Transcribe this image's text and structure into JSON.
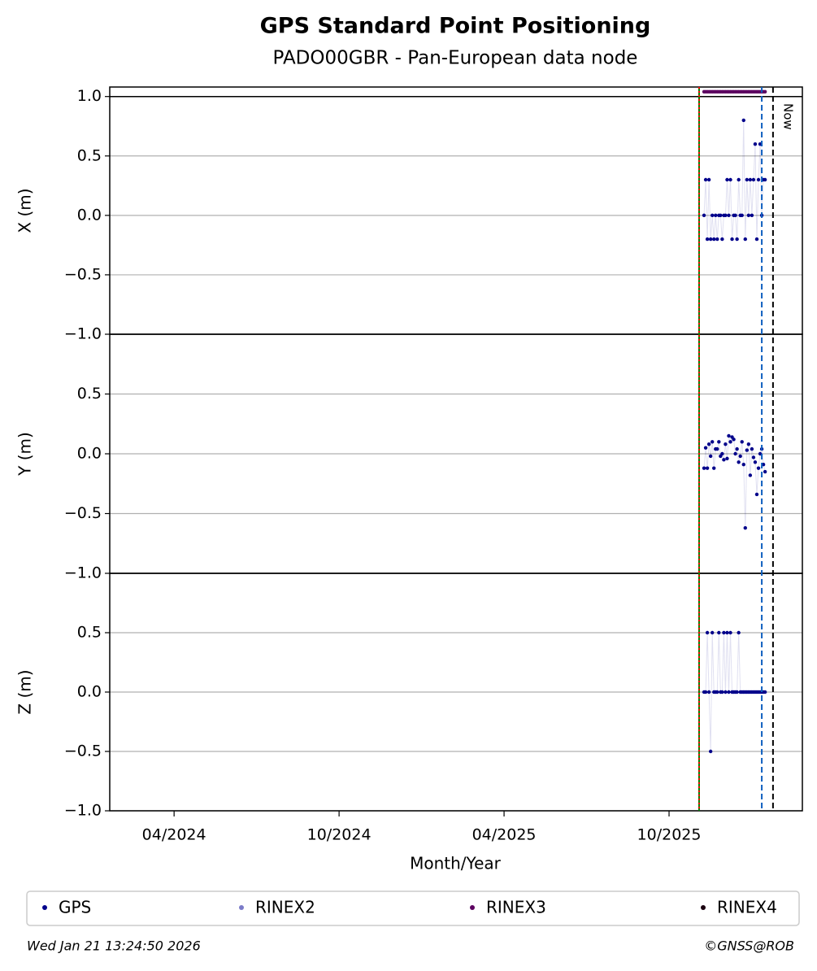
{
  "chart_data": {
    "type": "scatter",
    "title": "GPS Standard Point Positioning",
    "subtitle": "PADO00GBR - Pan-European data node",
    "xlabel": "Month/Year",
    "xlim": [
      2024.055,
      2026.154
    ],
    "xticks": [
      {
        "value": 2024.25,
        "label": "04/2024"
      },
      {
        "value": 2024.75,
        "label": "10/2024"
      },
      {
        "value": 2025.25,
        "label": "04/2025"
      },
      {
        "value": 2025.75,
        "label": "10/2025"
      }
    ],
    "grid": true,
    "x": [
      2025.856,
      2025.861,
      2025.866,
      2025.871,
      2025.876,
      2025.881,
      2025.886,
      2025.891,
      2025.896,
      2025.901,
      2025.906,
      2025.911,
      2025.916,
      2025.921,
      2025.926,
      2025.931,
      2025.936,
      2025.941,
      2025.946,
      2025.951,
      2025.956,
      2025.961,
      2025.966,
      2025.971,
      2025.976,
      2025.981,
      2025.986,
      2025.991,
      2025.996,
      2026.001,
      2026.006,
      2026.011,
      2026.016,
      2026.021,
      2026.026,
      2026.031,
      2026.036,
      2026.041
    ],
    "panels": [
      {
        "ylabel": "X (m)",
        "ylim": [
          -1,
          1.08
        ],
        "hline": 1,
        "yticks": [
          {
            "value": -1,
            "label": "−1.0"
          },
          {
            "value": -0.5,
            "label": "−0.5"
          },
          {
            "value": 0,
            "label": "0.0"
          },
          {
            "value": 0.5,
            "label": "0.5"
          },
          {
            "value": 1,
            "label": "1.0"
          }
        ]
      },
      {
        "ylabel": "Y (m)",
        "ylim": [
          -1,
          1
        ],
        "yticks": [
          {
            "value": -1,
            "label": "−1.0"
          },
          {
            "value": -0.5,
            "label": "−0.5"
          },
          {
            "value": 0,
            "label": "0.0"
          },
          {
            "value": 0.5,
            "label": "0.5"
          }
        ]
      },
      {
        "ylabel": "Z (m)",
        "ylim": [
          -1,
          1
        ],
        "yticks": [
          {
            "value": -1,
            "label": "−1.0"
          },
          {
            "value": -0.5,
            "label": "−0.5"
          },
          {
            "value": 0,
            "label": "0.0"
          },
          {
            "value": 0.5,
            "label": "0.5"
          }
        ]
      }
    ],
    "series": [
      {
        "name": "GPS",
        "color": "#00008b",
        "values": [
          [
            0,
            0.3,
            -0.2,
            0.3,
            -0.2,
            0,
            -0.2,
            0,
            -0.2,
            0,
            0,
            -0.2,
            0,
            0,
            0.3,
            0,
            0.3,
            -0.2,
            0,
            0,
            -0.2,
            0.3,
            0,
            0,
            0.8,
            -0.2,
            0.3,
            0,
            0.3,
            0,
            0.3,
            0.6,
            -0.2,
            0.3,
            0.6,
            0,
            0.3,
            0.3
          ],
          [
            -0.12,
            0.05,
            -0.12,
            0.08,
            -0.02,
            0.1,
            -0.12,
            0.04,
            0.04,
            0.1,
            -0.02,
            0.0,
            -0.05,
            0.08,
            -0.04,
            0.15,
            0.1,
            0.14,
            0.12,
            0.0,
            0.04,
            -0.07,
            -0.02,
            0.1,
            -0.09,
            -0.62,
            0.03,
            0.08,
            -0.18,
            0.04,
            -0.03,
            -0.07,
            -0.34,
            -0.12,
            0.0,
            0.04,
            -0.09,
            -0.15
          ],
          [
            0,
            0,
            0.5,
            0,
            -0.5,
            0.5,
            0,
            0,
            0,
            0.5,
            0,
            0,
            0.5,
            0,
            0.5,
            0,
            0.5,
            0,
            0,
            0,
            0,
            0.5,
            0,
            0,
            0,
            0,
            0,
            0,
            0,
            0,
            0,
            0,
            0,
            0,
            0,
            0,
            0,
            0
          ]
        ]
      },
      {
        "name": "RINEX2",
        "color": "#7b7bc8",
        "values": []
      },
      {
        "name": "RINEX3",
        "color": "#5c0060",
        "values": [
          [
            1.04,
            1.04,
            1.04,
            1.04,
            1.04,
            1.04,
            1.04,
            1.04,
            1.04,
            1.04,
            1.04,
            1.04,
            1.04,
            1.04,
            1.04,
            1.04,
            1.04,
            1.04,
            1.04,
            1.04,
            1.04,
            1.04,
            1.04,
            1.04,
            1.04,
            1.04,
            1.04,
            1.04,
            1.04,
            1.04,
            1.04,
            1.04,
            1.04,
            1.04,
            1.04,
            1.04,
            1.04,
            1.04
          ]
        ]
      },
      {
        "name": "RINEX4",
        "color": "#1a0010",
        "values": []
      }
    ],
    "vlines": [
      {
        "x": 2025.841,
        "color": "#008000",
        "style": "solid"
      },
      {
        "x": 2025.841,
        "color": "#ff0000",
        "style": "dotted"
      },
      {
        "x": 2026.031,
        "color": "#1060c0",
        "style": "dashed"
      },
      {
        "x": 2026.065,
        "color": "#000000",
        "style": "dashed",
        "label": "Now"
      }
    ],
    "footer_left": "Wed Jan 21 13:24:50 2026",
    "footer_right": "©GNSS@ROB"
  }
}
